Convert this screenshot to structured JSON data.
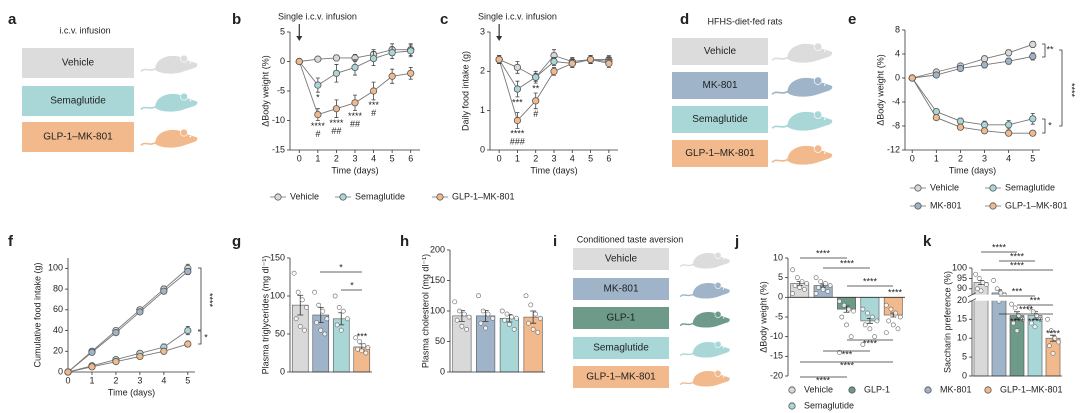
{
  "chart_data": [
    {
      "letter": "b",
      "type": "line",
      "title": "Single i.c.v. infusion",
      "xlabel": "Time (days)",
      "ylabel": "ΔBody weight (%)",
      "x": [
        0,
        1,
        2,
        3,
        4,
        5,
        6
      ],
      "xlim": [
        -0.5,
        6.5
      ],
      "xticks": [
        0,
        1,
        2,
        3,
        4,
        5,
        6
      ],
      "ylim": [
        -15,
        5
      ],
      "yticks": [
        -15,
        -10,
        -5,
        0,
        5
      ],
      "series": [
        {
          "name": "Vehicle",
          "color": "#d9d9d9",
          "values": [
            0,
            0.4,
            0.6,
            0.6,
            1.2,
            2,
            2
          ],
          "errors": [
            0,
            0.4,
            0.5,
            0.6,
            0.8,
            1,
            1
          ]
        },
        {
          "name": "Semaglutide",
          "color": "#a9d7d8",
          "values": [
            0,
            -4,
            -2,
            -1,
            0.5,
            1.5,
            1.8
          ],
          "errors": [
            0,
            1.2,
            1.5,
            1.3,
            1.2,
            1,
            1
          ],
          "annotations": [
            [],
            [
              "*"
            ],
            [],
            [],
            [],
            [],
            []
          ]
        },
        {
          "name": "GLP-1–MK-801",
          "color": "#f2ba8c",
          "values": [
            0,
            -9,
            -8,
            -7,
            -5,
            -2.5,
            -2
          ],
          "errors": [
            0,
            1,
            1.5,
            1.3,
            1.5,
            1.2,
            1
          ],
          "annotations": [
            [],
            [
              "****",
              "#"
            ],
            [
              "****",
              "##"
            ],
            [
              "****",
              "##"
            ],
            [
              "***",
              "#"
            ],
            [],
            []
          ]
        }
      ]
    },
    {
      "letter": "c",
      "type": "line",
      "title": "Single i.c.v. infusion",
      "xlabel": "Time (days)",
      "ylabel": "Daily food intake (g)",
      "x": [
        0,
        1,
        2,
        3,
        4,
        5,
        6
      ],
      "xlim": [
        -0.5,
        6.5
      ],
      "xticks": [
        0,
        1,
        2,
        3,
        4,
        5,
        6
      ],
      "ylim": [
        0,
        3
      ],
      "yticks": [
        0,
        1,
        2,
        3
      ],
      "series": [
        {
          "name": "Vehicle",
          "color": "#d9d9d9",
          "values": [
            2.3,
            2.1,
            1.85,
            2.4,
            2.25,
            2.3,
            2.3
          ],
          "errors": [
            0.1,
            0.15,
            0.1,
            0.15,
            0.1,
            0.1,
            0.1
          ]
        },
        {
          "name": "Semaglutide",
          "color": "#a9d7d8",
          "values": [
            2.3,
            1.55,
            1.85,
            2.25,
            2.2,
            2.3,
            2.25
          ],
          "errors": [
            0.1,
            0.2,
            0.15,
            0.1,
            0.1,
            0.1,
            0.1
          ],
          "annotations": [
            [],
            [
              "***"
            ],
            [
              "**"
            ],
            [],
            [],
            [],
            []
          ]
        },
        {
          "name": "GLP-1–MK-801",
          "color": "#f2ba8c",
          "values": [
            2.3,
            0.75,
            1.25,
            2.0,
            2.2,
            2.3,
            2.2
          ],
          "errors": [
            0.1,
            0.2,
            0.2,
            0.1,
            0.1,
            0.1,
            0.1
          ],
          "annotations": [
            [],
            [
              "****",
              "###"
            ],
            [
              "#"
            ],
            [],
            [],
            [],
            []
          ]
        }
      ]
    },
    {
      "letter": "e",
      "type": "line",
      "xlabel": "Time (days)",
      "ylabel": "ΔBody weight (%)",
      "x": [
        0,
        1,
        2,
        3,
        4,
        5
      ],
      "xlim": [
        -0.3,
        5.3
      ],
      "xticks": [
        0,
        1,
        2,
        3,
        4,
        5
      ],
      "ylim": [
        -12,
        8
      ],
      "yticks": [
        -12,
        -8,
        -4,
        0,
        4,
        8
      ],
      "series": [
        {
          "name": "Vehicle",
          "color": "#d9d9d9",
          "values": [
            0,
            1,
            2,
            3.2,
            4.2,
            5.6
          ],
          "errors": [
            0,
            0.3,
            0.4,
            0.5,
            0.5,
            0.5
          ]
        },
        {
          "name": "Semaglutide",
          "color": "#a9d7d8",
          "values": [
            0,
            -5.6,
            -7.2,
            -7.8,
            -7.8,
            -6.8
          ],
          "errors": [
            0,
            0.4,
            0.5,
            0.6,
            0.7,
            0.9
          ]
        },
        {
          "name": "MK-801",
          "color": "#9fb4c8",
          "values": [
            0,
            0.5,
            1.6,
            2.2,
            2.8,
            3.6
          ],
          "errors": [
            0,
            0.3,
            0.4,
            0.5,
            0.5,
            0.6
          ]
        },
        {
          "name": "GLP-1–MK-801",
          "color": "#f2ba8c",
          "values": [
            0,
            -6.6,
            -8.2,
            -8.8,
            -9.2,
            -9.2
          ],
          "errors": [
            0,
            0.3,
            0.4,
            0.4,
            0.4,
            0.4
          ]
        }
      ],
      "annotations": [
        "**",
        "*",
        "****"
      ]
    },
    {
      "letter": "f",
      "type": "line",
      "xlabel": "Time (days)",
      "ylabel": "Cumulative food intake (g)",
      "x": [
        0,
        1,
        2,
        3,
        4,
        5
      ],
      "xlim": [
        0,
        5.3
      ],
      "xticks": [
        0,
        1,
        2,
        3,
        4,
        5
      ],
      "ylim": [
        0,
        110
      ],
      "yticks": [
        0,
        20,
        40,
        60,
        80,
        100
      ],
      "series": [
        {
          "name": "Vehicle",
          "color": "#d9d9d9",
          "values": [
            0,
            20,
            40,
            60,
            80,
            100
          ],
          "errors": [
            0,
            1,
            1.5,
            2,
            3,
            4
          ]
        },
        {
          "name": "Semaglutide",
          "color": "#a9d7d8",
          "values": [
            0,
            6,
            12,
            18,
            24,
            40
          ],
          "errors": [
            0,
            1,
            1.5,
            2,
            3,
            4
          ]
        },
        {
          "name": "MK-801",
          "color": "#9fb4c8",
          "values": [
            0,
            19,
            38,
            58,
            78,
            97
          ],
          "errors": [
            0,
            1,
            1.5,
            2,
            2.5,
            3
          ]
        },
        {
          "name": "GLP-1–MK-801",
          "color": "#f2ba8c",
          "values": [
            0,
            5,
            10,
            15,
            20,
            27
          ],
          "errors": [
            0,
            0.5,
            1,
            1,
            1.5,
            2
          ]
        }
      ],
      "annotations": [
        "****",
        "*"
      ]
    },
    {
      "letter": "g",
      "type": "bar",
      "ylabel": "Plasma triglycerides (mg dl⁻¹)",
      "categories": [
        "Vehicle",
        "MK-801",
        "Semaglutide",
        "GLP-1–MK-801"
      ],
      "colors": [
        "#d9d9d9",
        "#9fb4c8",
        "#a9d7d8",
        "#f2ba8c"
      ],
      "values": [
        88,
        75,
        70,
        33
      ],
      "errors": [
        13,
        10,
        8,
        4
      ],
      "points": [
        [
          130,
          105,
          95,
          85,
          70,
          60,
          55
        ],
        [
          105,
          88,
          80,
          70,
          65,
          55,
          50
        ],
        [
          100,
          85,
          80,
          70,
          62,
          55
        ],
        [
          45,
          40,
          35,
          32,
          30,
          28,
          25
        ]
      ],
      "ylim": [
        0,
        150
      ],
      "yticks": [
        0,
        50,
        100,
        150
      ],
      "annotations": [
        "*",
        "*",
        "***"
      ]
    },
    {
      "letter": "h",
      "type": "bar",
      "ylabel": "Plasma cholesterol (mg dl⁻¹)",
      "categories": [
        "Vehicle",
        "MK-801",
        "Semaglutide",
        "GLP-1–MK-801"
      ],
      "colors": [
        "#d9d9d9",
        "#9fb4c8",
        "#a9d7d8",
        "#f2ba8c"
      ],
      "values": [
        92,
        92,
        88,
        90
      ],
      "errors": [
        9,
        9,
        6,
        10
      ],
      "points": [
        [
          115,
          100,
          95,
          90,
          85,
          75,
          70
        ],
        [
          125,
          100,
          95,
          88,
          80,
          72
        ],
        [
          100,
          95,
          90,
          88,
          85,
          78,
          70
        ],
        [
          125,
          110,
          95,
          88,
          80,
          70,
          65
        ]
      ],
      "ylim": [
        0,
        200
      ],
      "yticks": [
        0,
        50,
        100,
        150,
        200
      ]
    },
    {
      "letter": "j",
      "type": "bar",
      "ylabel": "ΔBody weight (%)",
      "categories": [
        "Vehicle",
        "MK-801",
        "GLP-1",
        "Semaglutide",
        "GLP-1–MK-801"
      ],
      "colors": [
        "#d9d9d9",
        "#9fb4c8",
        "#6e9a8a",
        "#a9d7d8",
        "#f2ba8c"
      ],
      "values": [
        3.5,
        3,
        -3,
        -6,
        -4.5
      ],
      "errors": [
        0.5,
        0.4,
        0.8,
        0.6,
        0.5
      ],
      "points": [
        [
          7,
          5,
          4,
          3.5,
          3,
          2.5,
          2,
          1
        ],
        [
          5,
          4,
          3.5,
          3,
          2.5,
          2,
          1.5,
          1
        ],
        [
          -1,
          -2,
          -3,
          -3.5,
          -5,
          -7,
          -10,
          -14
        ],
        [
          -3,
          -4,
          -5,
          -6,
          -7,
          -8,
          -10,
          -12
        ],
        [
          -2,
          -3,
          -4,
          -5,
          -6,
          -7,
          -8,
          -9
        ]
      ],
      "ylim": [
        -20,
        10
      ],
      "yticks": [
        -20,
        -15,
        -10,
        -5,
        0,
        5,
        10
      ],
      "annotations": [
        "****",
        "****",
        "****",
        "****",
        "****",
        "***",
        "****",
        "****"
      ]
    },
    {
      "letter": "k",
      "type": "bar",
      "ylabel": "Saccharin preference (%)",
      "categories": [
        "Vehicle",
        "MK-801",
        "GLP-1",
        "Semaglutide",
        "GLP-1–MK-801"
      ],
      "colors": [
        "#d9d9d9",
        "#9fb4c8",
        "#6e9a8a",
        "#a9d7d8",
        "#f2ba8c"
      ],
      "values": [
        93,
        88,
        16,
        16,
        10
      ],
      "errors": [
        1,
        1.5,
        1,
        1,
        0.8
      ],
      "points": [
        [
          97,
          95,
          93,
          92,
          90,
          89
        ],
        [
          94,
          90,
          88,
          87,
          86,
          84
        ],
        [
          19,
          18,
          16,
          15,
          14,
          12
        ],
        [
          18,
          17,
          16,
          15,
          14,
          13
        ],
        [
          15,
          12,
          10,
          9,
          8,
          6
        ]
      ],
      "ylim": [
        0,
        100
      ],
      "axis_break": [
        20,
        87
      ],
      "yticks": [
        0,
        5,
        10,
        15,
        20,
        90,
        95,
        100
      ],
      "annotations": [
        "****",
        "****",
        "****",
        "***",
        "***",
        "****",
        "****",
        "****",
        "****"
      ]
    }
  ],
  "diagrams": [
    {
      "letter": "a",
      "title": "i.c.v. infusion",
      "items": [
        {
          "label": "Vehicle",
          "color": "#dcdcdc"
        },
        {
          "label": "Semaglutide",
          "color": "#a9d7d8"
        },
        {
          "label": "GLP-1–MK-801",
          "color": "#f2ba8c"
        }
      ]
    },
    {
      "letter": "d",
      "title": "HFHS-diet-fed rats",
      "items": [
        {
          "label": "Vehicle",
          "color": "#dcdcdc"
        },
        {
          "label": "MK-801",
          "color": "#9fb4c8"
        },
        {
          "label": "Semaglutide",
          "color": "#a9d7d8"
        },
        {
          "label": "GLP-1–MK-801",
          "color": "#f2ba8c"
        }
      ]
    },
    {
      "letter": "i",
      "title": "Conditioned taste aversion",
      "items": [
        {
          "label": "Vehicle",
          "color": "#dcdcdc"
        },
        {
          "label": "MK-801",
          "color": "#9fb4c8"
        },
        {
          "label": "GLP-1",
          "color": "#6e9a8a"
        },
        {
          "label": "Semaglutide",
          "color": "#a9d7d8"
        },
        {
          "label": "GLP-1–MK-801",
          "color": "#f2ba8c"
        }
      ]
    }
  ]
}
